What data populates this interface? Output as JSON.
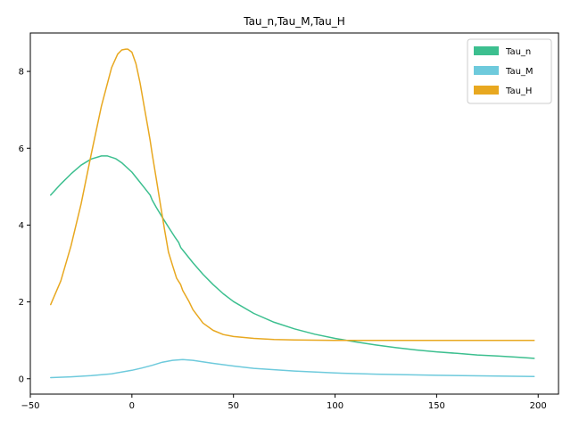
{
  "chart_data": {
    "type": "line",
    "title": "Tau_n,Tau_M,Tau_H",
    "xlabel": "",
    "ylabel": "",
    "xlim": [
      -50,
      210
    ],
    "ylim": [
      -0.4,
      9.0
    ],
    "xticks": [
      -50,
      0,
      50,
      100,
      150,
      200
    ],
    "yticks": [
      0,
      2,
      4,
      6,
      8
    ],
    "xtick_labels": [
      "−50",
      "0",
      "50",
      "100",
      "150",
      "200"
    ],
    "ytick_labels": [
      "0",
      "2",
      "4",
      "6",
      "8"
    ],
    "grid": false,
    "legend": {
      "position": "top-right"
    },
    "series": [
      {
        "name": "Tau_n",
        "color": "#3cbf8f",
        "x": [
          -40,
          -35,
          -30,
          -25,
          -20,
          -15,
          -12,
          -8,
          -5,
          0,
          3,
          6,
          9,
          10,
          12,
          15,
          18,
          21,
          23,
          24,
          25,
          27,
          30,
          35,
          40,
          45,
          50,
          60,
          70,
          80,
          90,
          100,
          110,
          120,
          130,
          140,
          150,
          160,
          170,
          180,
          190,
          198
        ],
        "y": [
          4.78,
          5.07,
          5.33,
          5.56,
          5.72,
          5.8,
          5.8,
          5.73,
          5.62,
          5.38,
          5.18,
          4.98,
          4.78,
          4.65,
          4.46,
          4.2,
          3.95,
          3.7,
          3.55,
          3.42,
          3.35,
          3.22,
          3.02,
          2.72,
          2.45,
          2.21,
          2.01,
          1.7,
          1.47,
          1.3,
          1.16,
          1.05,
          0.96,
          0.88,
          0.81,
          0.75,
          0.7,
          0.66,
          0.62,
          0.59,
          0.56,
          0.53
        ]
      },
      {
        "name": "Tau_M",
        "color": "#6ecadc",
        "x": [
          -40,
          -30,
          -20,
          -10,
          0,
          5,
          10,
          15,
          20,
          25,
          30,
          40,
          50,
          60,
          80,
          100,
          120,
          150,
          180,
          198
        ],
        "y": [
          0.03,
          0.05,
          0.08,
          0.13,
          0.22,
          0.28,
          0.35,
          0.43,
          0.48,
          0.5,
          0.48,
          0.4,
          0.33,
          0.27,
          0.2,
          0.15,
          0.12,
          0.09,
          0.07,
          0.06
        ]
      },
      {
        "name": "Tau_H",
        "color": "#e8a820",
        "x": [
          -40,
          -35,
          -30,
          -25,
          -20,
          -15,
          -10,
          -7,
          -5,
          -3,
          -2,
          0,
          2,
          4,
          6,
          8,
          9,
          10,
          12,
          14,
          16,
          18,
          20,
          22,
          24,
          25,
          28,
          30,
          35,
          40,
          45,
          50,
          60,
          70,
          80,
          100,
          150,
          198
        ],
        "y": [
          1.93,
          2.55,
          3.45,
          4.55,
          5.85,
          7.1,
          8.1,
          8.45,
          8.56,
          8.58,
          8.58,
          8.5,
          8.2,
          7.7,
          7.1,
          6.5,
          6.2,
          5.85,
          5.2,
          4.55,
          3.9,
          3.3,
          2.95,
          2.62,
          2.45,
          2.3,
          2.02,
          1.8,
          1.45,
          1.26,
          1.15,
          1.1,
          1.05,
          1.02,
          1.01,
          1.0,
          1.0,
          1.0
        ]
      }
    ]
  }
}
